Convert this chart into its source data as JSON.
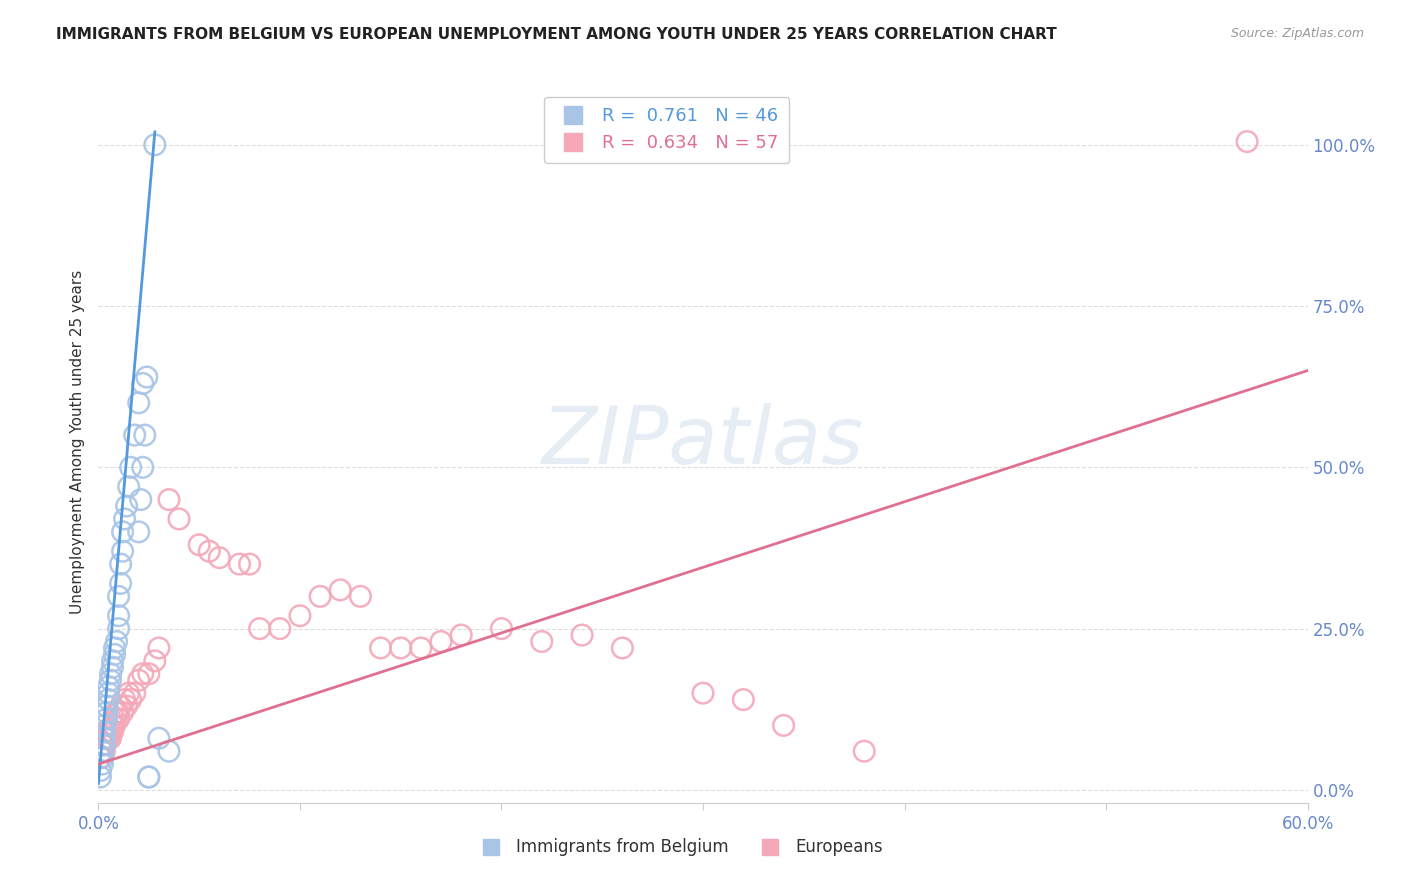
{
  "title": "IMMIGRANTS FROM BELGIUM VS EUROPEAN UNEMPLOYMENT AMONG YOUTH UNDER 25 YEARS CORRELATION CHART",
  "source": "Source: ZipAtlas.com",
  "ylabel": "Unemployment Among Youth under 25 years",
  "xlim": [
    0.0,
    0.6
  ],
  "ylim": [
    -0.02,
    1.1
  ],
  "yticks_right": [
    0.0,
    0.25,
    0.5,
    0.75,
    1.0
  ],
  "blue_R": 0.761,
  "blue_N": 46,
  "pink_R": 0.634,
  "pink_N": 57,
  "blue_scatter_color": "#a8c4e6",
  "pink_scatter_color": "#f4a8b8",
  "blue_line_color": "#5599dd",
  "pink_line_color": "#e07090",
  "legend_label_blue": "Immigrants from Belgium",
  "legend_label_pink": "Europeans",
  "watermark": "ZIPatlas",
  "title_color": "#222222",
  "source_color": "#999999",
  "axis_label_color": "#333333",
  "tick_color": "#6688cc",
  "grid_color": "#dddddd",
  "blue_trend_x": [
    0.0,
    0.028
  ],
  "blue_trend_y": [
    0.01,
    1.02
  ],
  "pink_trend_x": [
    0.0,
    0.6
  ],
  "pink_trend_y": [
    0.04,
    0.65
  ],
  "blue_x": [
    0.001,
    0.001,
    0.002,
    0.002,
    0.002,
    0.003,
    0.003,
    0.003,
    0.003,
    0.004,
    0.004,
    0.004,
    0.005,
    0.005,
    0.005,
    0.006,
    0.006,
    0.007,
    0.007,
    0.008,
    0.008,
    0.009,
    0.01,
    0.01,
    0.01,
    0.011,
    0.011,
    0.012,
    0.012,
    0.013,
    0.014,
    0.015,
    0.016,
    0.018,
    0.02,
    0.022,
    0.025,
    0.025,
    0.03,
    0.035,
    0.028,
    0.024,
    0.023,
    0.022,
    0.021,
    0.02
  ],
  "blue_y": [
    0.02,
    0.03,
    0.04,
    0.05,
    0.06,
    0.07,
    0.08,
    0.09,
    0.1,
    0.11,
    0.12,
    0.13,
    0.14,
    0.15,
    0.16,
    0.17,
    0.18,
    0.19,
    0.2,
    0.21,
    0.22,
    0.23,
    0.25,
    0.27,
    0.3,
    0.32,
    0.35,
    0.37,
    0.4,
    0.42,
    0.44,
    0.47,
    0.5,
    0.55,
    0.6,
    0.63,
    0.02,
    0.02,
    0.08,
    0.06,
    1.0,
    0.64,
    0.55,
    0.5,
    0.45,
    0.4
  ],
  "pink_x": [
    0.001,
    0.002,
    0.002,
    0.003,
    0.003,
    0.004,
    0.004,
    0.005,
    0.005,
    0.006,
    0.006,
    0.007,
    0.007,
    0.008,
    0.008,
    0.009,
    0.01,
    0.01,
    0.011,
    0.012,
    0.013,
    0.014,
    0.015,
    0.016,
    0.018,
    0.02,
    0.022,
    0.025,
    0.028,
    0.03,
    0.035,
    0.04,
    0.05,
    0.055,
    0.06,
    0.07,
    0.075,
    0.08,
    0.09,
    0.1,
    0.11,
    0.12,
    0.13,
    0.14,
    0.15,
    0.16,
    0.17,
    0.18,
    0.2,
    0.22,
    0.24,
    0.26,
    0.3,
    0.32,
    0.34,
    0.38,
    0.57
  ],
  "pink_y": [
    0.05,
    0.06,
    0.07,
    0.06,
    0.07,
    0.08,
    0.09,
    0.08,
    0.09,
    0.08,
    0.09,
    0.1,
    0.09,
    0.1,
    0.11,
    0.12,
    0.11,
    0.12,
    0.13,
    0.12,
    0.14,
    0.13,
    0.15,
    0.14,
    0.15,
    0.17,
    0.18,
    0.18,
    0.2,
    0.22,
    0.45,
    0.42,
    0.38,
    0.37,
    0.36,
    0.35,
    0.35,
    0.25,
    0.25,
    0.27,
    0.3,
    0.31,
    0.3,
    0.22,
    0.22,
    0.22,
    0.23,
    0.24,
    0.25,
    0.23,
    0.24,
    0.22,
    0.15,
    0.14,
    0.1,
    0.06,
    1.005
  ]
}
